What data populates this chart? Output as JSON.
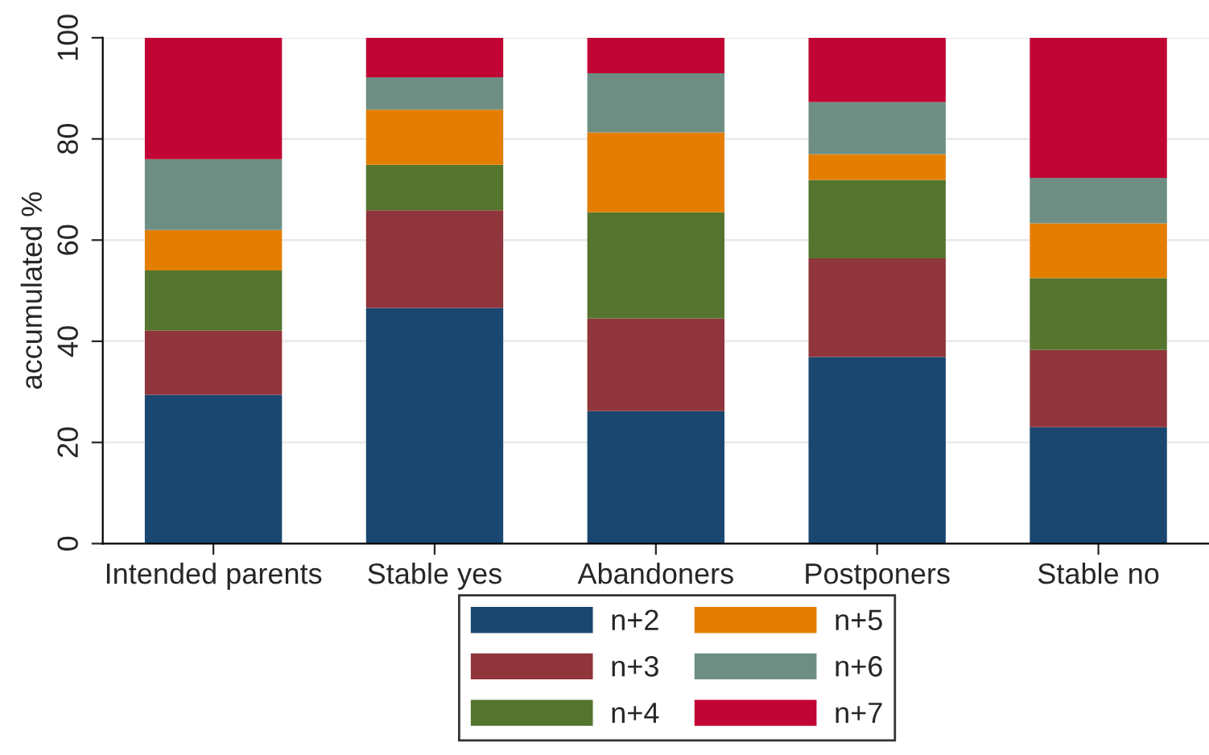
{
  "chart_data": {
    "type": "bar",
    "stacked": true,
    "ylabel": "accumulated %",
    "categories": [
      "Intended parents",
      "Stable yes",
      "Abandoners",
      "Postponers",
      "Stable no"
    ],
    "series": [
      {
        "name": "n+2",
        "color": "#1a476f",
        "values": [
          29.4,
          46.6,
          26.2,
          36.9,
          23.0
        ]
      },
      {
        "name": "n+3",
        "color": "#90353b",
        "values": [
          12.7,
          19.3,
          18.3,
          19.5,
          15.3
        ]
      },
      {
        "name": "n+4",
        "color": "#55752f",
        "values": [
          11.9,
          9.0,
          21.0,
          15.5,
          14.2
        ]
      },
      {
        "name": "n+5",
        "color": "#e37e00",
        "values": [
          8.0,
          10.9,
          15.8,
          5.1,
          10.8
        ]
      },
      {
        "name": "n+6",
        "color": "#6e8e84",
        "values": [
          14.0,
          6.4,
          11.7,
          10.3,
          9.0
        ]
      },
      {
        "name": "n+7",
        "color": "#c10534",
        "values": [
          24.0,
          7.8,
          7.0,
          12.7,
          27.7
        ]
      }
    ],
    "ylim": [
      0,
      100
    ],
    "yticks": [
      0,
      20,
      40,
      60,
      80,
      100
    ],
    "grid": "y",
    "legend": "bottom"
  }
}
